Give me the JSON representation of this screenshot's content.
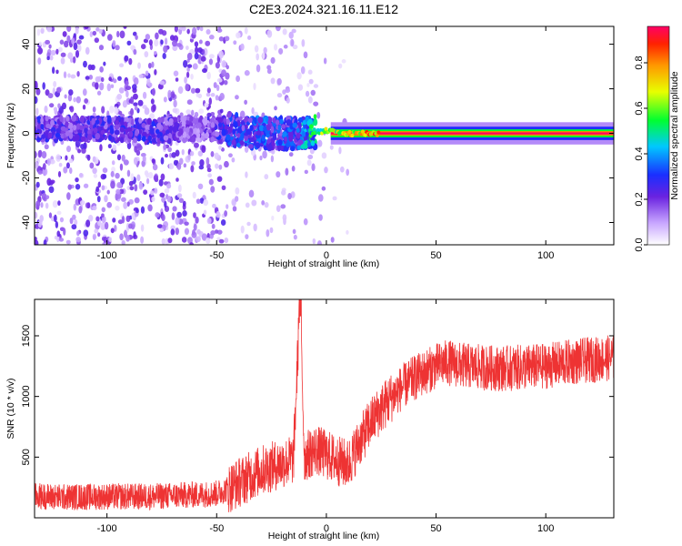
{
  "title": "C2E3.2024.321.16.11.E12",
  "chart_data": [
    {
      "type": "heatmap",
      "xlabel": "Height of straight line (km)",
      "ylabel": "Frequency (Hz)",
      "xlim": [
        -133,
        131
      ],
      "ylim": [
        -50,
        48
      ],
      "xticks": [
        -100,
        -50,
        0,
        50,
        100
      ],
      "xtick_labels": [
        "-100",
        "-50",
        "0",
        "50",
        "100"
      ],
      "yticks": [
        -40,
        -20,
        0,
        20,
        40
      ],
      "ytick_labels": [
        "-40",
        "-20",
        "0",
        "20",
        "40"
      ],
      "colorbar": {
        "label": "Normalized spectral amplitude",
        "range": [
          0,
          0.96
        ],
        "ticks": [
          0,
          0.2,
          0.4,
          0.6,
          0.8
        ],
        "tick_labels": [
          "0.0",
          "0.2",
          "0.4",
          "0.6",
          "0.8"
        ]
      },
      "profile": [
        {
          "x": -130,
          "center_hz": 2,
          "peak_amplitude": 0.3
        },
        {
          "x": -100,
          "center_hz": 2,
          "peak_amplitude": 0.3
        },
        {
          "x": -80,
          "center_hz": 1,
          "peak_amplitude": 0.32
        },
        {
          "x": -60,
          "center_hz": 2,
          "peak_amplitude": 0.2
        },
        {
          "x": -45,
          "center_hz": 2,
          "peak_amplitude": 0.35
        },
        {
          "x": -30,
          "center_hz": 0,
          "peak_amplitude": 0.4
        },
        {
          "x": -15,
          "center_hz": 0,
          "peak_amplitude": 0.38
        },
        {
          "x": 0,
          "center_hz": 1,
          "peak_amplitude": 0.75
        },
        {
          "x": 10,
          "center_hz": 0,
          "peak_amplitude": 0.85
        },
        {
          "x": 25,
          "center_hz": 0,
          "peak_amplitude": 0.95
        },
        {
          "x": 60,
          "center_hz": 0,
          "peak_amplitude": 0.96
        },
        {
          "x": 100,
          "center_hz": 0,
          "peak_amplitude": 0.96
        },
        {
          "x": 131,
          "center_hz": 0,
          "peak_amplitude": 0.96
        }
      ]
    },
    {
      "type": "line",
      "xlabel": "Height of straight line (km)",
      "ylabel": "SNR (10 * v/v)",
      "xlim": [
        -133,
        131
      ],
      "ylim": [
        0,
        1800
      ],
      "xticks": [
        -100,
        -50,
        0,
        50,
        100
      ],
      "xtick_labels": [
        "-100",
        "-50",
        "0",
        "50",
        "100"
      ],
      "yticks": [
        500,
        1000,
        1500
      ],
      "ytick_labels": [
        "500",
        "1000",
        "1500"
      ],
      "series": [
        {
          "color": "#ee3333",
          "x": [
            -133,
            -120,
            -100,
            -80,
            -60,
            -50,
            -45,
            -40,
            -35,
            -30,
            -25,
            -20,
            -15,
            -12,
            -10,
            -5,
            0,
            5,
            10,
            15,
            20,
            25,
            30,
            35,
            40,
            45,
            50,
            55,
            60,
            70,
            80,
            90,
            100,
            110,
            120,
            131
          ],
          "y": [
            180,
            170,
            175,
            175,
            190,
            200,
            240,
            290,
            340,
            390,
            420,
            450,
            480,
            1800,
            500,
            560,
            520,
            470,
            440,
            620,
            780,
            900,
            1000,
            1080,
            1150,
            1200,
            1250,
            1280,
            1260,
            1240,
            1230,
            1240,
            1250,
            1280,
            1300,
            1320
          ]
        }
      ]
    }
  ]
}
